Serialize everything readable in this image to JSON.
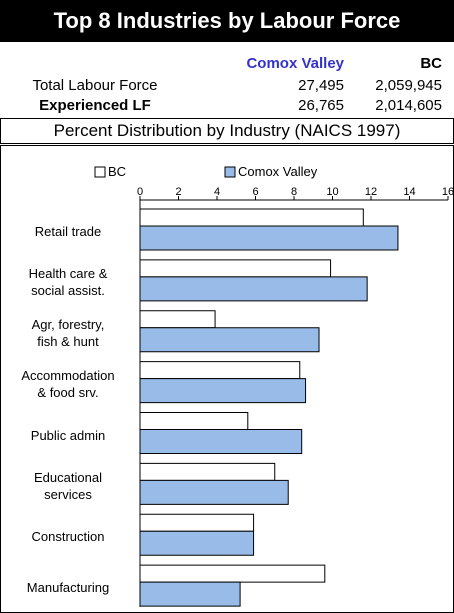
{
  "header": {
    "title": "Top 8 Industries by Labour Force"
  },
  "table": {
    "columns": [
      "Comox Valley",
      "BC"
    ],
    "rows": [
      [
        "Total Labour Force",
        "27,495",
        "2,059,945"
      ],
      [
        "Experienced LF",
        "26,765",
        "2,014,605"
      ]
    ]
  },
  "section": {
    "title": "Percent Distribution by Industry (NAICS 1997)"
  },
  "chart_data": {
    "type": "hbar",
    "categories": [
      "Retail trade",
      "Health care &\nsocial assist.",
      "Agr, forestry,\nfish & hunt",
      "Accommodation\n& food srv.",
      "Public admin",
      "Educational\nservices",
      "Construction",
      "Manufacturing"
    ],
    "series": [
      {
        "name": "BC",
        "color": "#ffffff",
        "values": [
          11.6,
          9.9,
          3.9,
          8.3,
          5.6,
          7.0,
          5.9,
          9.6
        ]
      },
      {
        "name": "Comox Valley",
        "color": "#99bbe8",
        "values": [
          13.4,
          11.8,
          9.3,
          8.6,
          8.4,
          7.7,
          5.9,
          5.2
        ]
      }
    ],
    "xlim": [
      0,
      16
    ],
    "xticks": [
      0,
      2,
      4,
      6,
      8,
      10,
      12,
      14,
      16
    ],
    "legend": "top"
  }
}
